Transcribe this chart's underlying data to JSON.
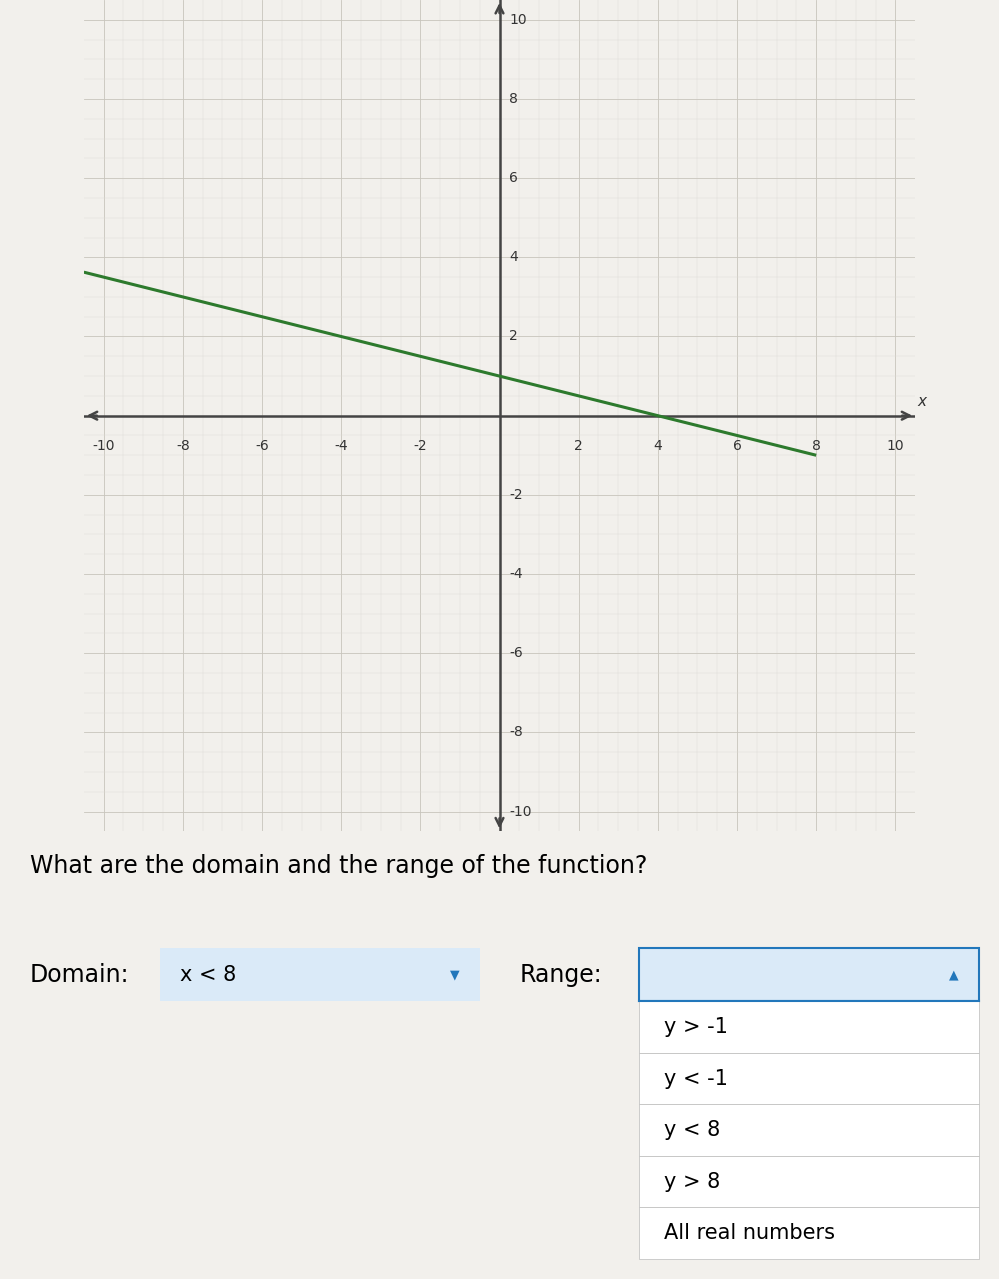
{
  "graph": {
    "xlim": [
      -10,
      10
    ],
    "ylim": [
      -10,
      10
    ],
    "x_ticks": [
      -10,
      -8,
      -6,
      -4,
      -2,
      2,
      4,
      6,
      8,
      10
    ],
    "y_ticks": [
      -10,
      -8,
      -6,
      -4,
      -2,
      2,
      4,
      6,
      8,
      10
    ],
    "background_color": "#ede9e0",
    "grid_color_major": "#c8c4bc",
    "grid_color_minor": "#dedad4",
    "line_color": "#2d7a2d",
    "line_width": 2.2,
    "endpoint_x": 8,
    "endpoint_y": -1,
    "slope": -0.25,
    "y_intercept": 1.0
  },
  "question_text": "What are the domain and the range of the function?",
  "question_font_size": 17,
  "domain_label": "Domain:",
  "domain_value": "x < 8",
  "range_label": "Range:",
  "dropdown_options": [
    "y > -1",
    "y < -1",
    "y < 8",
    "y > 8",
    "All real numbers"
  ],
  "dropdown_bg": "#daeaf8",
  "dropdown_border": "#2277bb",
  "dropdown_text_color": "#000000",
  "dropdown_item_bg": "#ffffff",
  "dropdown_font_size": 15,
  "label_font_size": 17,
  "page_bg": "#f2f0ec"
}
